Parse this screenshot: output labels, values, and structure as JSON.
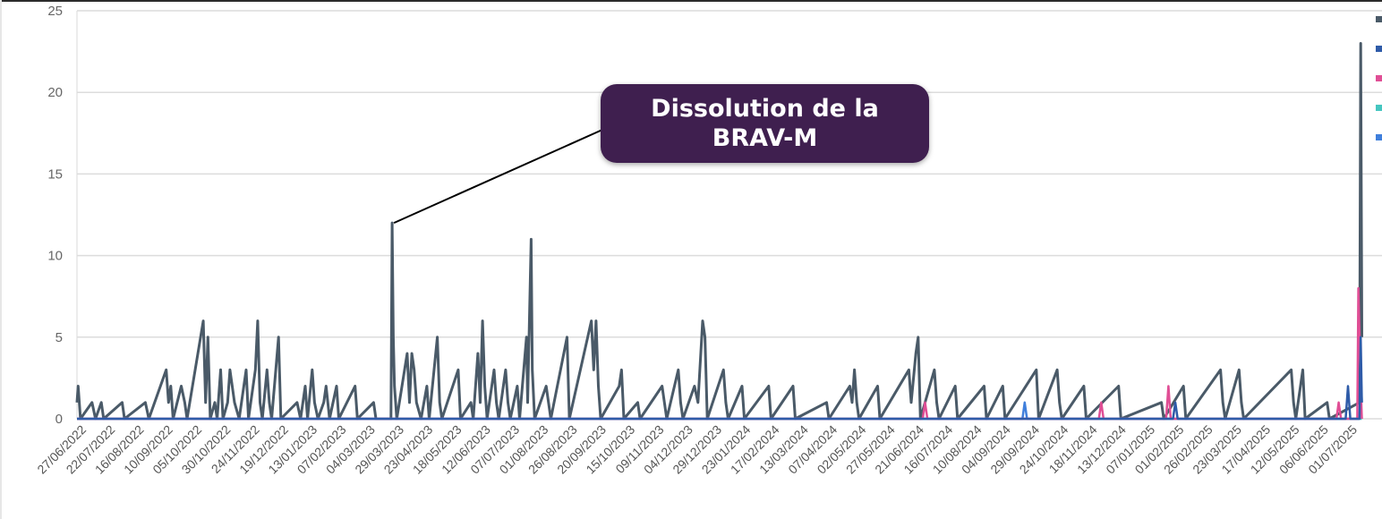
{
  "chart_data": {
    "type": "line",
    "annotation": "Dissolution de la BRAV-M",
    "annotation_point": {
      "x": "2023-03-26",
      "y": 12
    },
    "ylim": [
      0,
      25
    ],
    "y_ticks": [
      0,
      5,
      10,
      15,
      20,
      25
    ],
    "x_range": [
      "2022-06-27",
      "2025-07-15"
    ],
    "x_tick_labels": [
      "27/06/2022",
      "22/07/2022",
      "16/08/2022",
      "10/09/2022",
      "05/10/2022",
      "30/10/2022",
      "24/11/2022",
      "19/12/2022",
      "13/01/2023",
      "07/02/2023",
      "04/03/2023",
      "29/03/2023",
      "23/04/2023",
      "18/05/2023",
      "12/06/2023",
      "07/07/2023",
      "01/08/2023",
      "26/08/2023",
      "20/09/2023",
      "15/10/2023",
      "09/11/2023",
      "04/12/2023",
      "29/12/2023",
      "23/01/2024",
      "17/02/2024",
      "13/03/2024",
      "07/04/2024",
      "02/05/2024",
      "27/05/2024",
      "21/06/2024",
      "16/07/2024",
      "10/08/2024",
      "04/09/2024",
      "29/09/2024",
      "24/10/2024",
      "18/11/2024",
      "13/12/2024",
      "07/01/2025",
      "01/02/2025",
      "26/02/2025",
      "23/03/2025",
      "17/04/2025",
      "12/05/2025",
      "06/06/2025",
      "01/07/2025"
    ],
    "grid": true,
    "legend_position": "right",
    "series": [
      {
        "color": "#4a5a68",
        "points": [
          [
            "2022-06-27",
            1
          ],
          [
            "2022-06-28",
            2
          ],
          [
            "2022-06-30",
            0
          ],
          [
            "2022-07-10",
            1
          ],
          [
            "2022-07-13",
            0
          ],
          [
            "2022-07-18",
            1
          ],
          [
            "2022-07-20",
            0
          ],
          [
            "2022-08-05",
            1
          ],
          [
            "2022-08-07",
            0
          ],
          [
            "2022-08-25",
            1
          ],
          [
            "2022-08-28",
            0
          ],
          [
            "2022-09-12",
            3
          ],
          [
            "2022-09-14",
            1
          ],
          [
            "2022-09-16",
            2
          ],
          [
            "2022-09-18",
            0
          ],
          [
            "2022-09-25",
            2
          ],
          [
            "2022-09-28",
            1
          ],
          [
            "2022-09-30",
            0
          ],
          [
            "2022-10-14",
            6
          ],
          [
            "2022-10-16",
            1
          ],
          [
            "2022-10-18",
            5
          ],
          [
            "2022-10-20",
            0
          ],
          [
            "2022-10-24",
            1
          ],
          [
            "2022-10-26",
            0
          ],
          [
            "2022-10-29",
            3
          ],
          [
            "2022-10-31",
            0
          ],
          [
            "2022-11-04",
            1
          ],
          [
            "2022-11-06",
            3
          ],
          [
            "2022-11-10",
            1
          ],
          [
            "2022-11-14",
            0
          ],
          [
            "2022-11-18",
            2
          ],
          [
            "2022-11-20",
            3
          ],
          [
            "2022-11-22",
            0
          ],
          [
            "2022-11-28",
            3
          ],
          [
            "2022-11-30",
            6
          ],
          [
            "2022-12-02",
            1
          ],
          [
            "2022-12-04",
            0
          ],
          [
            "2022-12-08",
            3
          ],
          [
            "2022-12-10",
            1
          ],
          [
            "2022-12-12",
            0
          ],
          [
            "2022-12-18",
            5
          ],
          [
            "2022-12-20",
            0
          ],
          [
            "2023-01-03",
            1
          ],
          [
            "2023-01-06",
            0
          ],
          [
            "2023-01-10",
            2
          ],
          [
            "2023-01-12",
            0
          ],
          [
            "2023-01-16",
            3
          ],
          [
            "2023-01-18",
            1
          ],
          [
            "2023-01-21",
            0
          ],
          [
            "2023-01-26",
            1
          ],
          [
            "2023-01-28",
            2
          ],
          [
            "2023-01-31",
            0
          ],
          [
            "2023-02-06",
            2
          ],
          [
            "2023-02-08",
            0
          ],
          [
            "2023-02-22",
            2
          ],
          [
            "2023-02-24",
            0
          ],
          [
            "2023-03-10",
            1
          ],
          [
            "2023-03-12",
            0
          ],
          [
            "2023-03-25",
            0
          ],
          [
            "2023-03-26",
            12
          ],
          [
            "2023-03-27",
            5
          ],
          [
            "2023-03-28",
            2
          ],
          [
            "2023-03-30",
            0
          ],
          [
            "2023-04-08",
            4
          ],
          [
            "2023-04-10",
            1
          ],
          [
            "2023-04-12",
            4
          ],
          [
            "2023-04-14",
            3
          ],
          [
            "2023-04-16",
            1
          ],
          [
            "2023-04-20",
            0
          ],
          [
            "2023-04-25",
            2
          ],
          [
            "2023-04-27",
            0
          ],
          [
            "2023-05-04",
            5
          ],
          [
            "2023-05-06",
            1
          ],
          [
            "2023-05-08",
            0
          ],
          [
            "2023-05-22",
            3
          ],
          [
            "2023-05-24",
            0
          ],
          [
            "2023-06-02",
            1
          ],
          [
            "2023-06-04",
            0
          ],
          [
            "2023-06-08",
            4
          ],
          [
            "2023-06-10",
            1
          ],
          [
            "2023-06-12",
            6
          ],
          [
            "2023-06-14",
            2
          ],
          [
            "2023-06-16",
            0
          ],
          [
            "2023-06-22",
            3
          ],
          [
            "2023-06-24",
            1
          ],
          [
            "2023-06-26",
            0
          ],
          [
            "2023-07-02",
            3
          ],
          [
            "2023-07-04",
            1
          ],
          [
            "2023-07-06",
            0
          ],
          [
            "2023-07-12",
            2
          ],
          [
            "2023-07-14",
            0
          ],
          [
            "2023-07-20",
            5
          ],
          [
            "2023-07-21",
            1
          ],
          [
            "2023-07-24",
            11
          ],
          [
            "2023-07-25",
            3
          ],
          [
            "2023-07-27",
            0
          ],
          [
            "2023-08-06",
            2
          ],
          [
            "2023-08-08",
            1
          ],
          [
            "2023-08-10",
            0
          ],
          [
            "2023-08-24",
            5
          ],
          [
            "2023-08-26",
            0
          ],
          [
            "2023-09-14",
            6
          ],
          [
            "2023-09-16",
            3
          ],
          [
            "2023-09-18",
            6
          ],
          [
            "2023-09-20",
            2
          ],
          [
            "2023-09-22",
            0
          ],
          [
            "2023-10-08",
            2
          ],
          [
            "2023-10-10",
            3
          ],
          [
            "2023-10-12",
            0
          ],
          [
            "2023-10-24",
            1
          ],
          [
            "2023-10-26",
            0
          ],
          [
            "2023-11-14",
            2
          ],
          [
            "2023-11-16",
            1
          ],
          [
            "2023-11-18",
            0
          ],
          [
            "2023-11-28",
            3
          ],
          [
            "2023-11-30",
            1
          ],
          [
            "2023-12-02",
            0
          ],
          [
            "2023-12-12",
            2
          ],
          [
            "2023-12-15",
            1
          ],
          [
            "2023-12-19",
            6
          ],
          [
            "2023-12-21",
            5
          ],
          [
            "2023-12-23",
            0
          ],
          [
            "2024-01-06",
            3
          ],
          [
            "2024-01-08",
            1
          ],
          [
            "2024-01-10",
            0
          ],
          [
            "2024-01-22",
            2
          ],
          [
            "2024-01-24",
            0
          ],
          [
            "2024-02-14",
            2
          ],
          [
            "2024-02-16",
            0
          ],
          [
            "2024-03-06",
            2
          ],
          [
            "2024-03-08",
            0
          ],
          [
            "2024-04-04",
            1
          ],
          [
            "2024-04-06",
            0
          ],
          [
            "2024-04-24",
            2
          ],
          [
            "2024-04-26",
            1
          ],
          [
            "2024-04-28",
            3
          ],
          [
            "2024-04-30",
            1
          ],
          [
            "2024-05-02",
            0
          ],
          [
            "2024-05-18",
            2
          ],
          [
            "2024-05-20",
            0
          ],
          [
            "2024-06-14",
            3
          ],
          [
            "2024-06-16",
            1
          ],
          [
            "2024-06-20",
            4
          ],
          [
            "2024-06-22",
            5
          ],
          [
            "2024-06-24",
            0
          ],
          [
            "2024-07-06",
            3
          ],
          [
            "2024-07-08",
            1
          ],
          [
            "2024-07-10",
            0
          ],
          [
            "2024-07-24",
            2
          ],
          [
            "2024-07-26",
            0
          ],
          [
            "2024-08-18",
            2
          ],
          [
            "2024-08-20",
            0
          ],
          [
            "2024-09-03",
            2
          ],
          [
            "2024-09-05",
            0
          ],
          [
            "2024-10-02",
            3
          ],
          [
            "2024-10-04",
            0
          ],
          [
            "2024-10-20",
            3
          ],
          [
            "2024-10-22",
            1
          ],
          [
            "2024-10-24",
            0
          ],
          [
            "2024-11-12",
            2
          ],
          [
            "2024-11-14",
            0
          ],
          [
            "2024-12-12",
            2
          ],
          [
            "2024-12-14",
            0
          ],
          [
            "2025-01-18",
            1
          ],
          [
            "2025-01-20",
            0
          ],
          [
            "2025-02-06",
            2
          ],
          [
            "2025-02-08",
            0
          ],
          [
            "2025-03-10",
            3
          ],
          [
            "2025-03-12",
            1
          ],
          [
            "2025-03-14",
            0
          ],
          [
            "2025-03-26",
            3
          ],
          [
            "2025-03-28",
            1
          ],
          [
            "2025-03-30",
            0
          ],
          [
            "2025-05-10",
            3
          ],
          [
            "2025-05-12",
            1
          ],
          [
            "2025-05-14",
            0
          ],
          [
            "2025-05-20",
            3
          ],
          [
            "2025-05-22",
            0
          ],
          [
            "2025-06-10",
            1
          ],
          [
            "2025-06-12",
            0
          ],
          [
            "2025-07-08",
            1
          ],
          [
            "2025-07-09",
            23
          ],
          [
            "2025-07-10",
            5
          ]
        ]
      },
      {
        "color": "#2e5ba8",
        "points": [
          [
            "2022-06-27",
            0
          ],
          [
            "2025-01-28",
            0
          ],
          [
            "2025-01-30",
            1
          ],
          [
            "2025-02-01",
            0
          ],
          [
            "2025-06-26",
            0
          ],
          [
            "2025-06-28",
            2
          ],
          [
            "2025-06-30",
            0
          ],
          [
            "2025-07-08",
            0
          ],
          [
            "2025-07-09",
            5
          ],
          [
            "2025-07-10",
            1
          ]
        ]
      },
      {
        "color": "#e04e95",
        "points": [
          [
            "2022-06-27",
            0
          ],
          [
            "2024-06-26",
            0
          ],
          [
            "2024-06-28",
            1
          ],
          [
            "2024-06-30",
            0
          ],
          [
            "2024-11-25",
            0
          ],
          [
            "2024-11-27",
            1
          ],
          [
            "2024-11-29",
            0
          ],
          [
            "2025-01-22",
            0
          ],
          [
            "2025-01-24",
            2
          ],
          [
            "2025-01-26",
            0
          ],
          [
            "2025-06-18",
            0
          ],
          [
            "2025-06-20",
            1
          ],
          [
            "2025-06-22",
            0
          ],
          [
            "2025-07-06",
            0
          ],
          [
            "2025-07-07",
            8
          ],
          [
            "2025-07-09",
            2
          ],
          [
            "2025-07-10",
            0
          ]
        ]
      },
      {
        "color": "#45c6c0",
        "points": [
          [
            "2022-06-27",
            0
          ],
          [
            "2025-07-10",
            0
          ]
        ]
      },
      {
        "color": "#3f7fdc",
        "points": [
          [
            "2022-06-27",
            0
          ],
          [
            "2024-09-20",
            0
          ],
          [
            "2024-09-22",
            1
          ],
          [
            "2024-09-24",
            0
          ],
          [
            "2025-07-08",
            0
          ],
          [
            "2025-07-09",
            3
          ],
          [
            "2025-07-10",
            1
          ]
        ]
      }
    ]
  }
}
